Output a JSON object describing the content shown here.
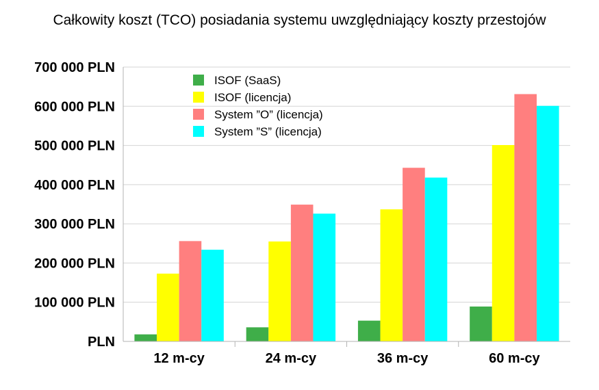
{
  "chart_data": {
    "type": "bar",
    "title": "Całkowity koszt (TCO) posiadania systemu uwzględniający koszty przestojów",
    "xlabel": "",
    "ylabel": "",
    "categories": [
      "12 m-cy",
      "24 m-cy",
      "36 m-cy",
      "60 m-cy"
    ],
    "ylim": [
      0,
      700000
    ],
    "yticks": [
      0,
      100000,
      200000,
      300000,
      400000,
      500000,
      600000,
      700000
    ],
    "ytick_labels": [
      "PLN",
      "100 000 PLN",
      "200 000 PLN",
      "300 000 PLN",
      "400 000 PLN",
      "500 000 PLN",
      "600 000 PLN",
      "700 000 PLN"
    ],
    "grid": true,
    "legend_position": "top-left",
    "series": [
      {
        "name": "ISOF (SaaS)",
        "color": "#3fae49",
        "values": [
          18000,
          36000,
          53000,
          89000
        ]
      },
      {
        "name": "ISOF (licencja)",
        "color": "#ffff00",
        "values": [
          173000,
          255000,
          337000,
          501000
        ]
      },
      {
        "name": "System ”O” (licencja)",
        "color": "#ff7f7f",
        "values": [
          256000,
          349000,
          443000,
          631000
        ]
      },
      {
        "name": "System ”S” (licencja)",
        "color": "#00ffff",
        "values": [
          234000,
          326000,
          418000,
          601000
        ]
      }
    ]
  }
}
